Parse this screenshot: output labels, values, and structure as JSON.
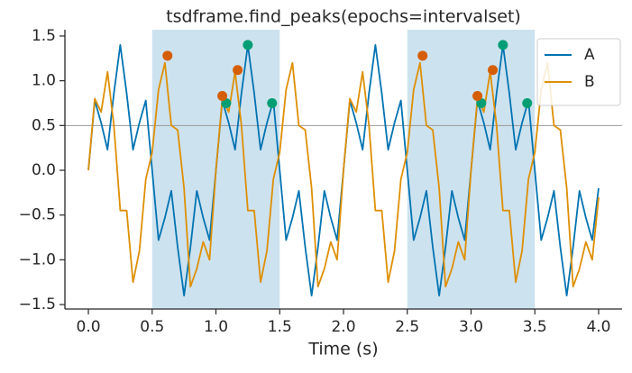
{
  "chart_data": {
    "type": "line",
    "title": "tsdframe.find_peaks(epochs=intervalset)",
    "xlabel": "Time (s)",
    "x": [
      0,
      0.05,
      0.1,
      0.15,
      0.2,
      0.25,
      0.3,
      0.35,
      0.4,
      0.45,
      0.5,
      0.55,
      0.6,
      0.65,
      0.7,
      0.75,
      0.8,
      0.85,
      0.9,
      0.95,
      1,
      1.05,
      1.1,
      1.15,
      1.2,
      1.25,
      1.3,
      1.35,
      1.4,
      1.45,
      1.5,
      1.55,
      1.6,
      1.65,
      1.7,
      1.75,
      1.8,
      1.85,
      1.9,
      1.95,
      2,
      2.05,
      2.1,
      2.15,
      2.2,
      2.25,
      2.3,
      2.35,
      2.4,
      2.45,
      2.5,
      2.55,
      2.6,
      2.65,
      2.7,
      2.75,
      2.8,
      2.85,
      2.9,
      2.95,
      3,
      3.05,
      3.1,
      3.15,
      3.2,
      3.25,
      3.3,
      3.35,
      3.4,
      3.45,
      3.5,
      3.55,
      3.6,
      3.65,
      3.7,
      3.75,
      3.8,
      3.85,
      3.9,
      3.95,
      4
    ],
    "series": [
      {
        "name": "A",
        "color": "#0173b2",
        "values": [
          0,
          0.78,
          0.53,
          0.23,
          0.86,
          1.4,
          0.86,
          0.23,
          0.53,
          0.78,
          0,
          -0.78,
          -0.53,
          -0.23,
          -0.86,
          -1.4,
          -0.86,
          -0.23,
          -0.53,
          -0.78,
          0,
          0.78,
          0.53,
          0.23,
          0.86,
          1.4,
          0.86,
          0.23,
          0.53,
          0.78,
          0,
          -0.78,
          -0.53,
          -0.23,
          -0.86,
          -1.4,
          -0.86,
          -0.23,
          -0.53,
          -0.78,
          0,
          0.78,
          0.53,
          0.23,
          0.86,
          1.4,
          0.86,
          0.23,
          0.53,
          0.78,
          0,
          -0.78,
          -0.53,
          -0.23,
          -0.86,
          -1.4,
          -0.86,
          -0.23,
          -0.53,
          -0.78,
          0,
          0.78,
          0.53,
          0.23,
          0.86,
          1.4,
          0.86,
          0.23,
          0.53,
          0.78,
          0,
          -0.78,
          -0.53,
          -0.23,
          -0.86,
          -1.4,
          -0.86,
          -0.23,
          -0.53,
          -0.78,
          -0.2
        ],
        "peaks_x": [
          1.08,
          1.25,
          1.44,
          3.08,
          3.25,
          3.44
        ],
        "peaks": [
          0.75,
          1.4,
          0.75,
          0.75,
          1.4,
          0.75
        ],
        "peak_color": "#029e73"
      },
      {
        "name": "B",
        "color": "#de8f05",
        "values": [
          0,
          0.8,
          0.65,
          1.1,
          0.5,
          -0.45,
          -0.45,
          -1.25,
          -0.9,
          -0.1,
          0.2,
          0.9,
          1.2,
          0.5,
          0.45,
          -0.2,
          -1.3,
          -1.1,
          -0.8,
          -1.0,
          0,
          0.8,
          0.65,
          1.1,
          0.5,
          -0.45,
          -0.45,
          -1.25,
          -0.9,
          -0.1,
          0.2,
          0.9,
          1.2,
          0.5,
          0.45,
          -0.2,
          -1.3,
          -1.1,
          -0.8,
          -1.0,
          0,
          0.8,
          0.65,
          1.1,
          0.5,
          -0.45,
          -0.45,
          -1.25,
          -0.9,
          -0.1,
          0.2,
          0.9,
          1.2,
          0.5,
          0.45,
          -0.2,
          -1.3,
          -1.1,
          -0.8,
          -1.0,
          0,
          0.8,
          0.65,
          1.1,
          0.5,
          -0.45,
          -0.45,
          -1.25,
          -0.9,
          -0.1,
          0.2,
          0.9,
          1.2,
          0.5,
          0.45,
          -0.2,
          -1.3,
          -1.1,
          -0.8,
          -1.0,
          -0.3
        ],
        "peaks_x": [
          0.62,
          1.05,
          1.17,
          2.62,
          3.05,
          3.17
        ],
        "peaks": [
          1.28,
          0.83,
          1.12,
          1.28,
          0.83,
          1.12
        ],
        "peak_color": "#d55e00"
      }
    ],
    "intervals": [
      [
        0.5,
        1.5
      ],
      [
        2.5,
        3.5
      ]
    ],
    "interval_color": "#cde2ef",
    "threshold": 0.5,
    "xlim": [
      -0.184,
      4.184
    ],
    "ylim": [
      -1.55,
      1.57
    ],
    "xticks": [
      {
        "value": 0,
        "label": "0.0"
      },
      0.5,
      {
        "value": 1,
        "label": "1.0"
      },
      1.5,
      {
        "value": 2,
        "label": "2.0"
      },
      2.5,
      {
        "value": 3,
        "label": "3.0"
      },
      3.5,
      {
        "value": 4,
        "label": "4.0"
      }
    ],
    "yticks": [
      {
        "value": -1.5,
        "label": "−1.5"
      },
      {
        "value": -1,
        "label": "−1.0"
      },
      {
        "value": -0.5,
        "label": "−0.5"
      },
      {
        "value": 0,
        "label": "0.0"
      },
      0.5,
      {
        "value": 1,
        "label": "1.0"
      },
      1.5
    ],
    "legend": "upper right"
  }
}
